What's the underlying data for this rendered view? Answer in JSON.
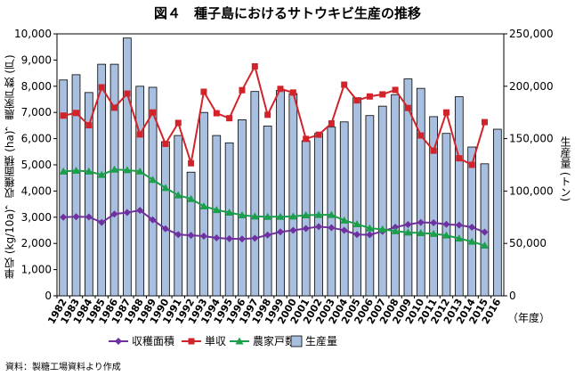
{
  "title": "図４　種子島におけるサトウキビ生産の推移",
  "source": "資料：製糖工場資料より作成",
  "chart_data": {
    "type": "bar",
    "categories": [
      "1982",
      "1983",
      "1984",
      "1985",
      "1986",
      "1987",
      "1988",
      "1989",
      "1990",
      "1991",
      "1992",
      "1993",
      "1994",
      "1995",
      "1996",
      "1997",
      "1998",
      "1999",
      "2000",
      "2001",
      "2002",
      "2003",
      "2004",
      "2005",
      "2006",
      "2007",
      "2008",
      "2009",
      "2010",
      "2011",
      "2012",
      "2013",
      "2014",
      "2015",
      "2016"
    ],
    "ylabel_left": "単収 (kg/10a)，収穫面積 (ha)，農家戸数 (戸)",
    "ylabel_right": "生産量 (トン)",
    "xunit": "（年度）",
    "ylim_left": [
      0,
      10000
    ],
    "ylim_right": [
      0,
      250000
    ],
    "yticks_left": [
      "0",
      "1,000",
      "2,000",
      "3,000",
      "4,000",
      "5,000",
      "6,000",
      "7,000",
      "8,000",
      "9,000",
      "10,000"
    ],
    "yticks_right": [
      "0",
      "50,000",
      "100,000",
      "150,000",
      "200,000",
      "250,000"
    ],
    "legend": [
      "収穫面積",
      "単収",
      "農家戸数",
      "生産量"
    ],
    "series": [
      {
        "name": "生産量",
        "axis": "right",
        "kind": "bar",
        "color": "#a9bfe0",
        "values": [
          206000,
          211000,
          194000,
          221000,
          221000,
          246000,
          200000,
          199000,
          147000,
          153000,
          118000,
          175000,
          153000,
          146000,
          168000,
          195000,
          162000,
          196000,
          193000,
          148000,
          155000,
          161000,
          166000,
          189000,
          172000,
          181000,
          192000,
          207000,
          198000,
          171000,
          155000,
          190000,
          142000,
          126000,
          159000
        ]
      },
      {
        "name": "収穫面積",
        "axis": "left",
        "kind": "line",
        "color": "#7030a0",
        "marker": "diamond",
        "values": [
          3000,
          3020,
          3010,
          2800,
          3120,
          3180,
          3260,
          2900,
          2560,
          2340,
          2310,
          2280,
          2210,
          2180,
          2170,
          2200,
          2320,
          2440,
          2500,
          2570,
          2640,
          2600,
          2500,
          2340,
          2330,
          2460,
          2620,
          2720,
          2800,
          2790,
          2730,
          2700,
          2620,
          2430,
          null
        ]
      },
      {
        "name": "単収",
        "axis": "left",
        "kind": "line",
        "color": "#d2232a",
        "marker": "square",
        "values": [
          6880,
          6980,
          6510,
          7960,
          7180,
          7720,
          6160,
          7000,
          5800,
          6600,
          5060,
          7790,
          6970,
          6780,
          7850,
          8760,
          6910,
          7900,
          7760,
          5990,
          6150,
          6580,
          8060,
          7460,
          7610,
          7690,
          7860,
          7170,
          6120,
          5540,
          7000,
          5250,
          5000,
          6630,
          null
        ]
      },
      {
        "name": "農家戸数",
        "axis": "left",
        "kind": "line",
        "color": "#1aa04a",
        "marker": "triangle",
        "values": [
          4750,
          4780,
          4750,
          4620,
          4820,
          4800,
          4750,
          4430,
          4120,
          3840,
          3700,
          3420,
          3280,
          3180,
          3080,
          3030,
          3020,
          3020,
          3030,
          3080,
          3090,
          3090,
          2880,
          2740,
          2580,
          2540,
          2470,
          2420,
          2400,
          2370,
          2310,
          2190,
          2070,
          1920,
          null
        ]
      }
    ]
  }
}
